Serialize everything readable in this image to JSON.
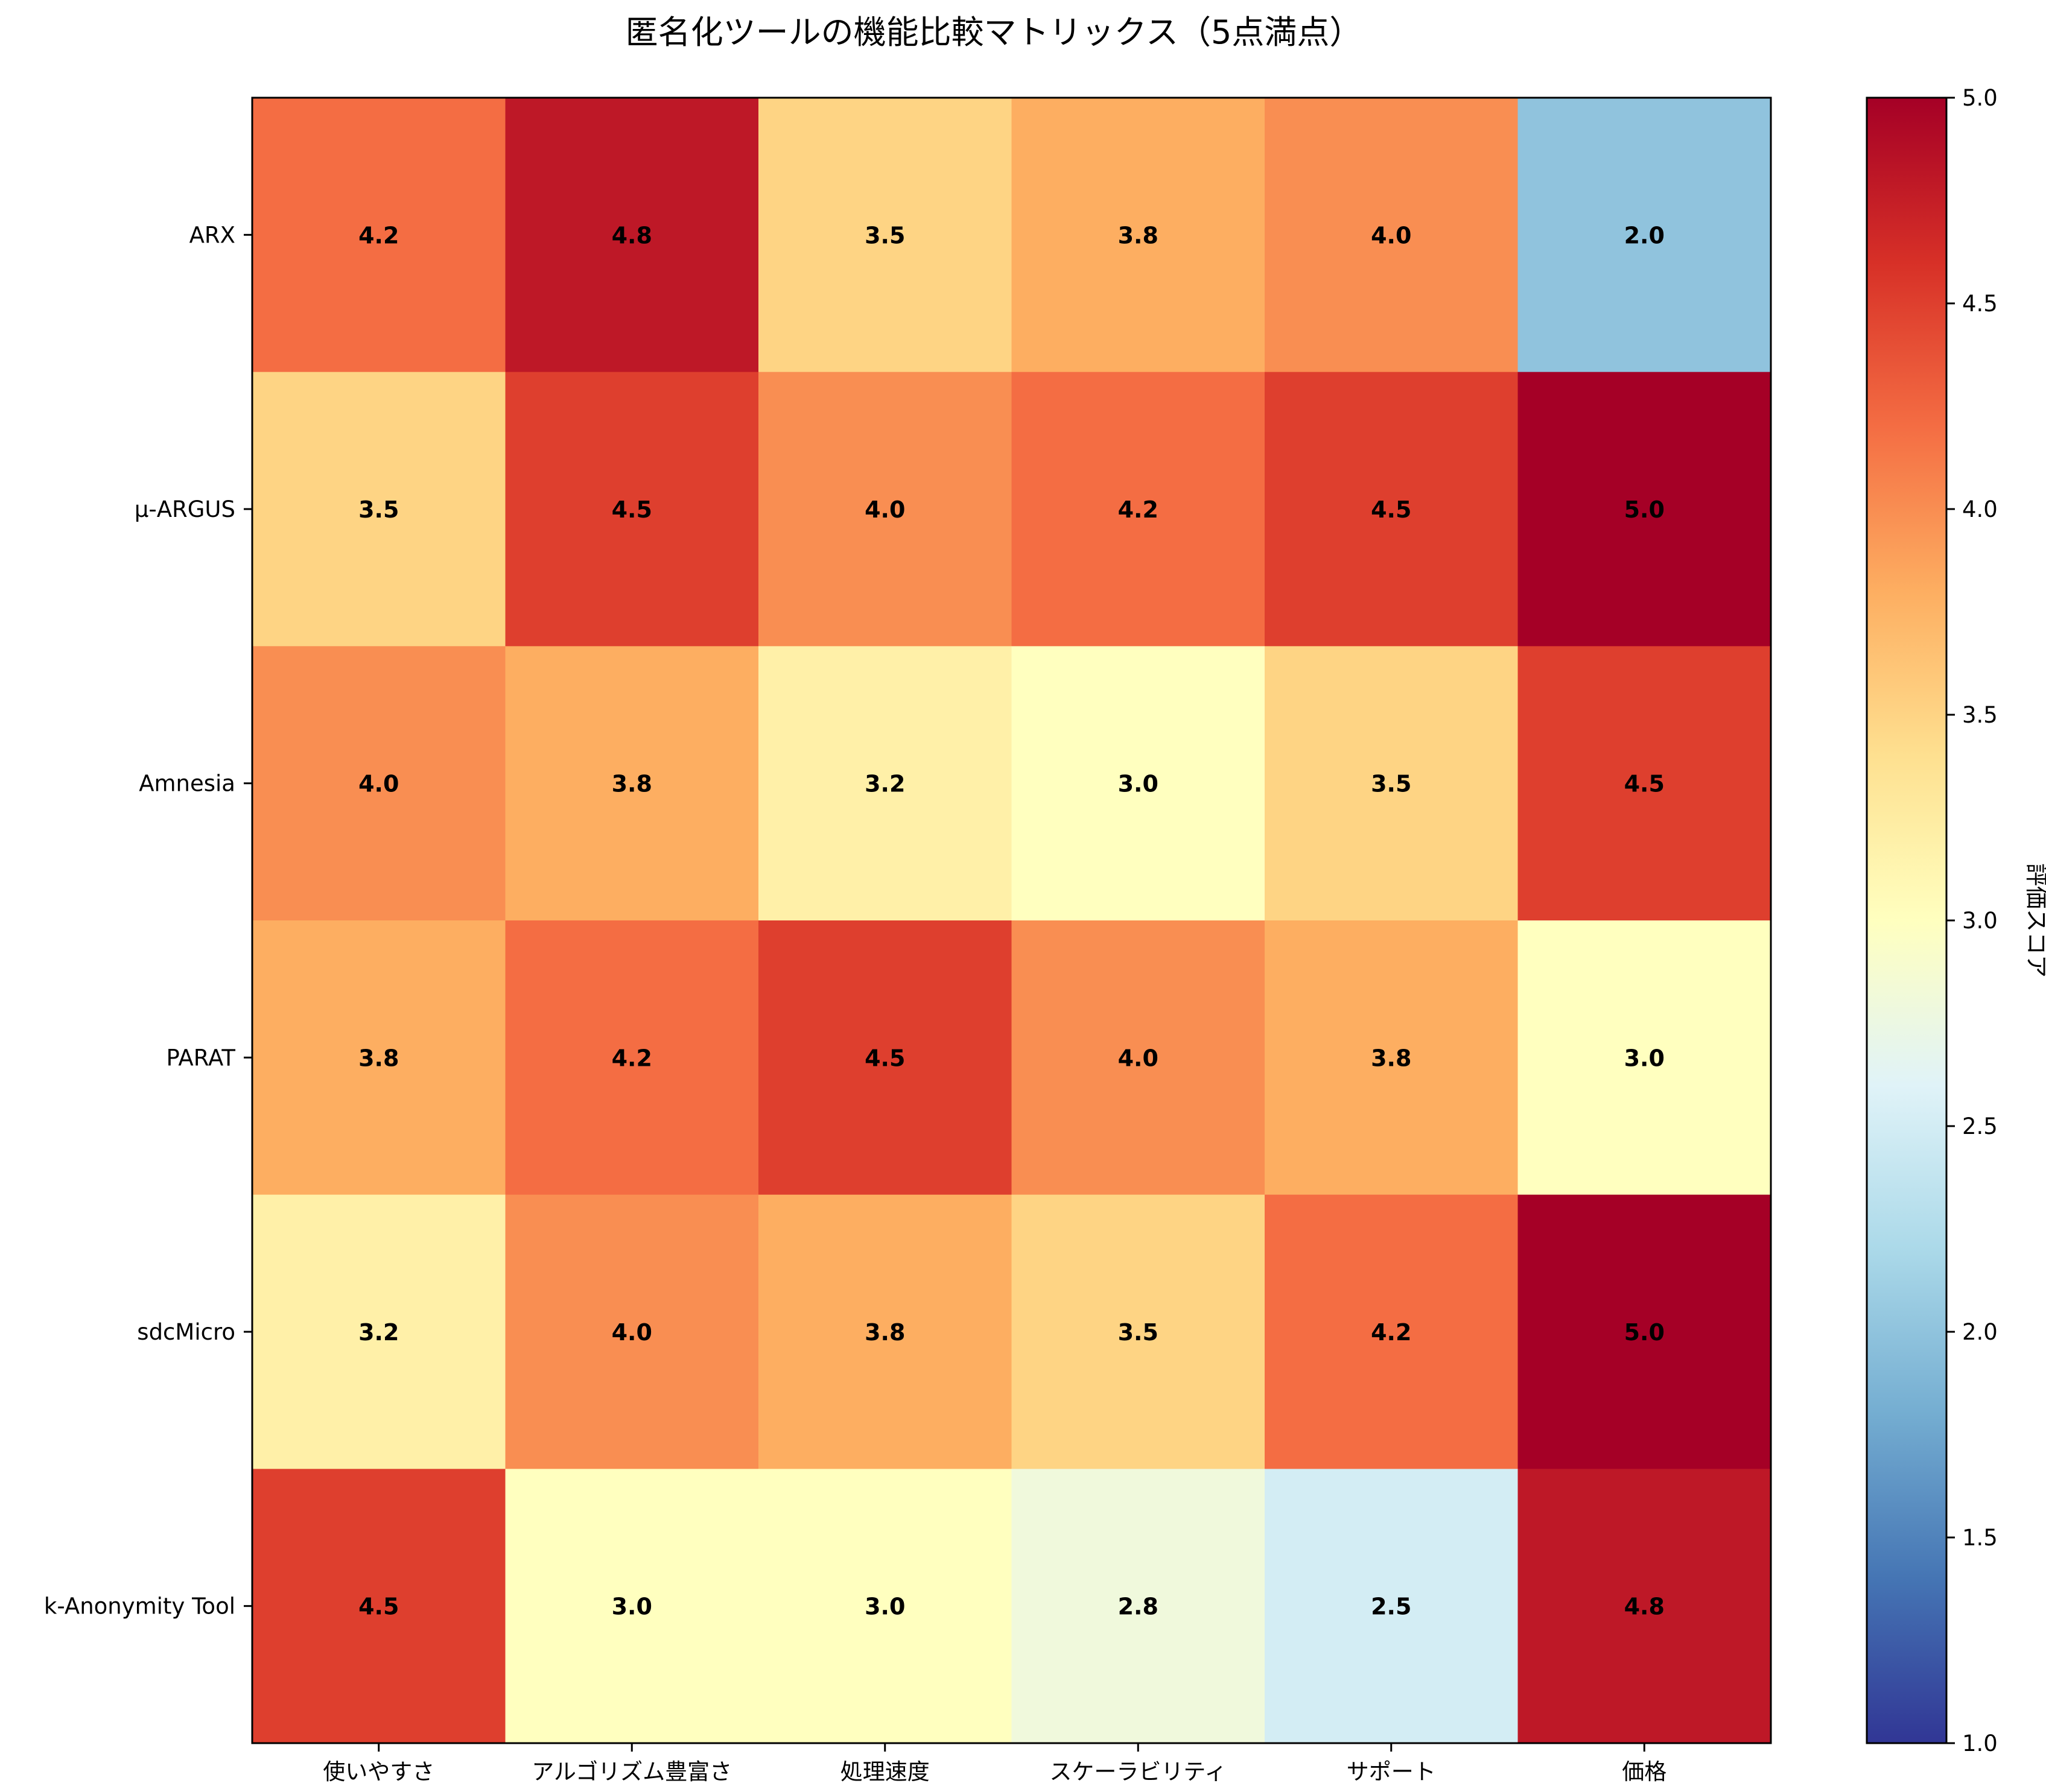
{
  "chart_data": {
    "type": "heatmap",
    "title": "匿名化ツールの機能比較マトリックス（5点満点）",
    "xlabel": "",
    "ylabel": "",
    "columns": [
      "使いやすさ",
      "アルゴリズム豊富さ",
      "処理速度",
      "スケーラビリティ",
      "サポート",
      "価格"
    ],
    "rows": [
      "ARX",
      "μ-ARGUS",
      "Amnesia",
      "PARAT",
      "sdcMicro",
      "k-Anonymity Tool"
    ],
    "values": [
      [
        4.2,
        4.8,
        3.5,
        3.8,
        4.0,
        2.0
      ],
      [
        3.5,
        4.5,
        4.0,
        4.2,
        4.5,
        5.0
      ],
      [
        4.0,
        3.8,
        3.2,
        3.0,
        3.5,
        4.5
      ],
      [
        3.8,
        4.2,
        4.5,
        4.0,
        3.8,
        3.0
      ],
      [
        3.2,
        4.0,
        3.8,
        3.5,
        4.2,
        5.0
      ],
      [
        4.5,
        3.0,
        3.0,
        2.8,
        2.5,
        4.8
      ]
    ],
    "value_format": "0.0",
    "colorbar": {
      "label": "評価スコア",
      "range": [
        1.0,
        5.0
      ],
      "ticks": [
        "1.0",
        "1.5",
        "2.0",
        "2.5",
        "3.0",
        "3.5",
        "4.0",
        "4.5",
        "5.0"
      ]
    },
    "colormap": "RdYlBu_r",
    "colormap_stops": [
      "#313695",
      "#4575b4",
      "#74add1",
      "#abd9e9",
      "#e0f3f8",
      "#ffffbf",
      "#fee090",
      "#fdae61",
      "#f46d43",
      "#d73027",
      "#a50026"
    ]
  }
}
